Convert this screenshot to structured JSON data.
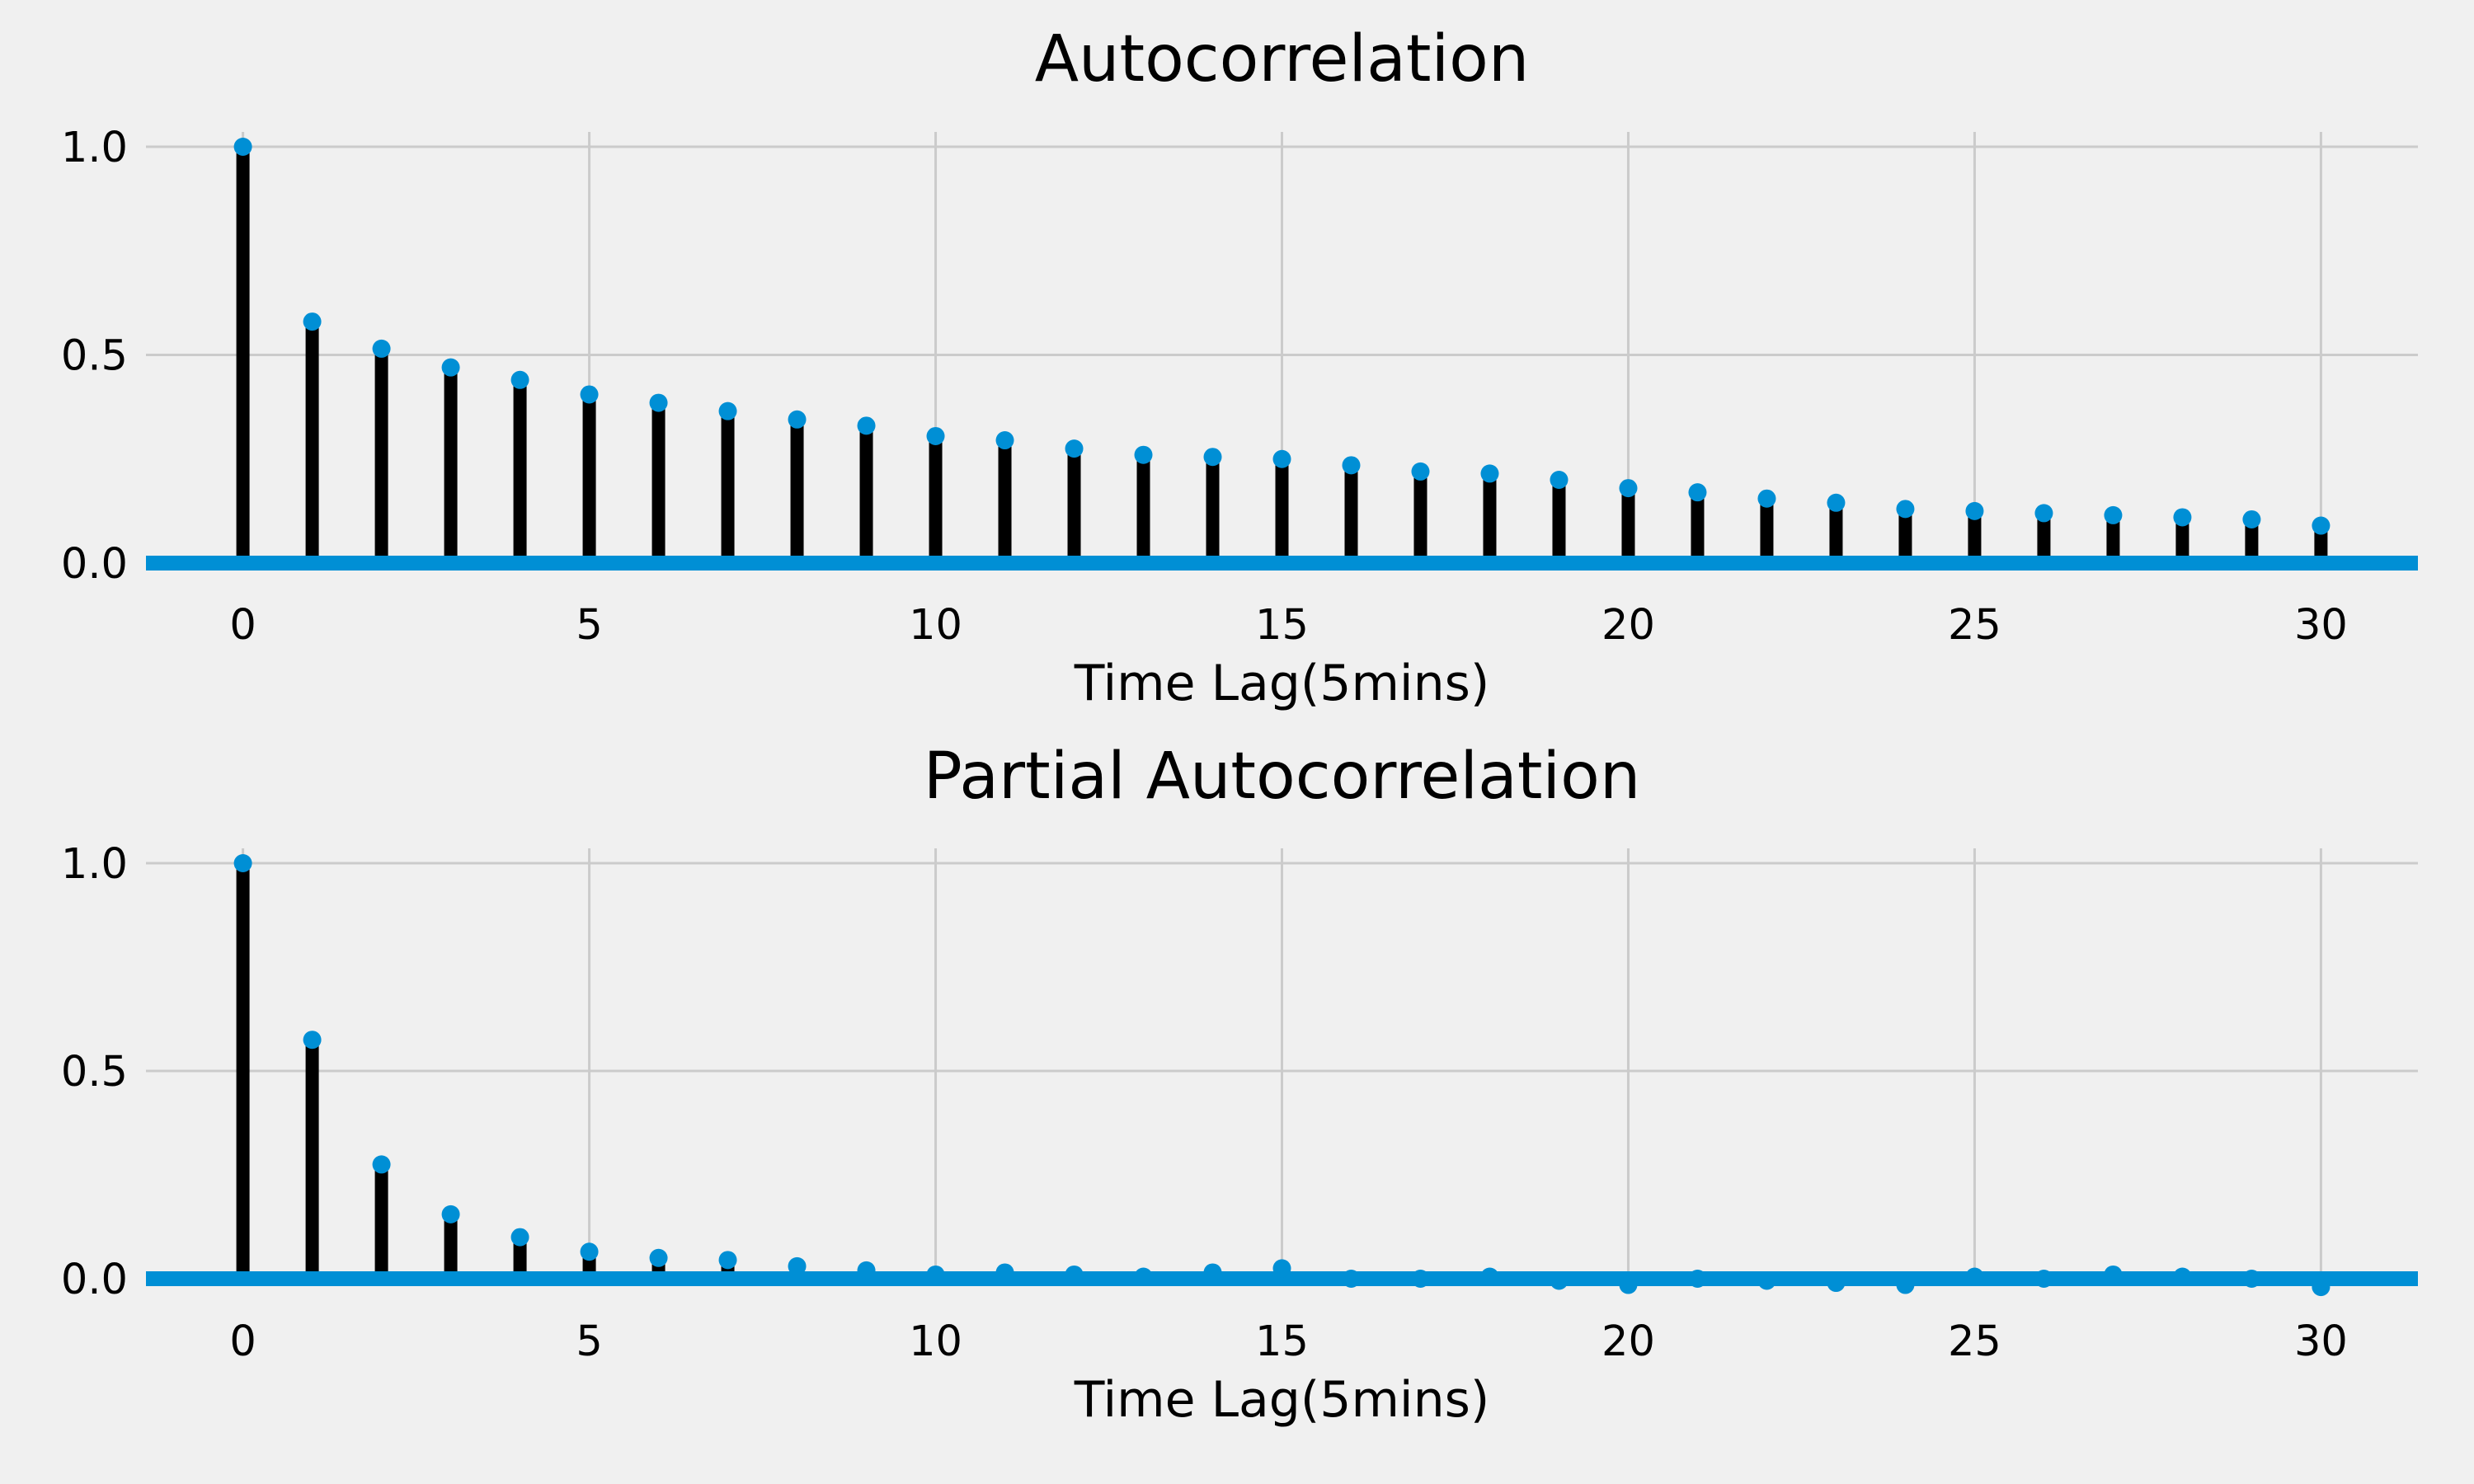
{
  "chart_data": [
    {
      "type": "stem",
      "title": "Autocorrelation",
      "xlabel": "Time Lag(5mins)",
      "ylabel": "",
      "xlim": [
        -1.4,
        31.4
      ],
      "ylim": [
        0,
        1.0
      ],
      "xticks": [
        0,
        5,
        10,
        15,
        20,
        25,
        30
      ],
      "xtick_labels": [
        "0",
        "5",
        "10",
        "15",
        "20",
        "25",
        "30"
      ],
      "yticks": [
        0.0,
        0.5,
        1.0
      ],
      "ytick_labels": [
        "0.0",
        "0.5",
        "1.0"
      ],
      "grid": true,
      "x": [
        0,
        1,
        2,
        3,
        4,
        5,
        6,
        7,
        8,
        9,
        10,
        11,
        12,
        13,
        14,
        15,
        16,
        17,
        18,
        19,
        20,
        21,
        22,
        23,
        24,
        25,
        26,
        27,
        28,
        29,
        30
      ],
      "values": [
        1.0,
        0.58,
        0.515,
        0.47,
        0.44,
        0.405,
        0.385,
        0.365,
        0.345,
        0.33,
        0.305,
        0.295,
        0.275,
        0.26,
        0.255,
        0.25,
        0.235,
        0.22,
        0.215,
        0.2,
        0.18,
        0.17,
        0.155,
        0.145,
        0.13,
        0.125,
        0.12,
        0.115,
        0.11,
        0.105,
        0.09
      ]
    },
    {
      "type": "stem",
      "title": "Partial Autocorrelation",
      "xlabel": "Time Lag(5mins)",
      "ylabel": "",
      "xlim": [
        -1.4,
        31.4
      ],
      "ylim": [
        0,
        1.0
      ],
      "xticks": [
        0,
        5,
        10,
        15,
        20,
        25,
        30
      ],
      "xtick_labels": [
        "0",
        "5",
        "10",
        "15",
        "20",
        "25",
        "30"
      ],
      "yticks": [
        0.0,
        0.5,
        1.0
      ],
      "ytick_labels": [
        "0.0",
        "0.5",
        "1.0"
      ],
      "grid": true,
      "x": [
        0,
        1,
        2,
        3,
        4,
        5,
        6,
        7,
        8,
        9,
        10,
        11,
        12,
        13,
        14,
        15,
        16,
        17,
        18,
        19,
        20,
        21,
        22,
        23,
        24,
        25,
        26,
        27,
        28,
        29,
        30
      ],
      "values": [
        1.0,
        0.575,
        0.275,
        0.155,
        0.1,
        0.065,
        0.05,
        0.045,
        0.03,
        0.02,
        0.01,
        0.015,
        0.01,
        0.005,
        0.015,
        0.025,
        0.0,
        0.0,
        0.005,
        -0.005,
        -0.015,
        0.0,
        -0.005,
        -0.01,
        -0.015,
        0.005,
        0.0,
        0.01,
        0.005,
        0.0,
        -0.02
      ]
    }
  ],
  "colors": {
    "background": "#f0f0f0",
    "grid": "#cbcbcb",
    "stem": "#000000",
    "marker": "#008fd5",
    "baseline": "#008fd5"
  }
}
